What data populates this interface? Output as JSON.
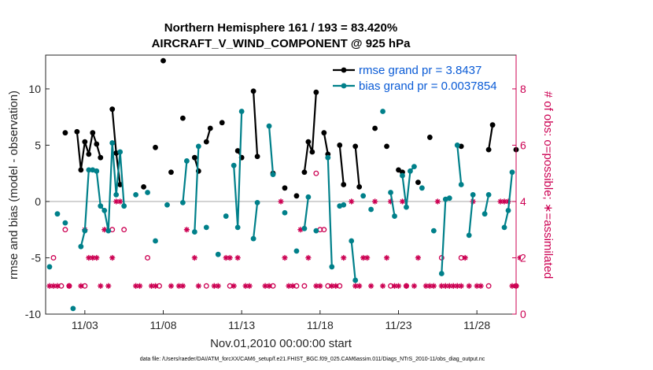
{
  "chart_data": {
    "type": "line",
    "title": "Northern Hemisphere 161 / 193 = 83.420%",
    "subtitle": "AIRCRAFT_V_WIND_COMPONENT @ 925 hPa",
    "xlabel": "Nov.01,2010 00:00:00 start",
    "ylabel": "rmse and bias (model - observation)",
    "ylabel_right": "# of obs: o=possible; ∗=assimilated",
    "footnote": "data file: /Users/raeder/DAI/ATM_forcXX/CAM6_setup/f.e21.FHIST_BGC.f09_025.CAM6assim.011/Diags_NTrS_2010-11/obs_diag_output.nc",
    "xlim": [
      0.5,
      30.5
    ],
    "ylim": [
      -10,
      13
    ],
    "ylim_right": [
      0,
      9.2
    ],
    "x_ticks": [
      {
        "value": 3,
        "label": "11/03"
      },
      {
        "value": 8,
        "label": "11/08"
      },
      {
        "value": 13,
        "label": "11/13"
      },
      {
        "value": 18,
        "label": "11/18"
      },
      {
        "value": 23,
        "label": "11/23"
      },
      {
        "value": 28,
        "label": "11/28"
      }
    ],
    "y_ticks": [
      {
        "value": -10,
        "label": "-10"
      },
      {
        "value": -5,
        "label": "-5"
      },
      {
        "value": 0,
        "label": "0"
      },
      {
        "value": 5,
        "label": "5"
      },
      {
        "value": 10,
        "label": "10"
      }
    ],
    "y_ticks_right": [
      {
        "value": 0,
        "label": "0"
      },
      {
        "value": 2,
        "label": "2"
      },
      {
        "value": 4,
        "label": "4"
      },
      {
        "value": 6,
        "label": "6"
      },
      {
        "value": 8,
        "label": "8"
      }
    ],
    "series": [
      {
        "name": "rmse grand pr = 3.8437",
        "color": "#000000",
        "points": [
          [
            1.75,
            6.1
          ],
          [
            2.5,
            6.2
          ],
          [
            2.75,
            2.8
          ],
          [
            3.0,
            5.3
          ],
          [
            3.25,
            4.2
          ],
          [
            3.5,
            6.1
          ],
          [
            3.75,
            5.1
          ],
          [
            4.0,
            3.9
          ],
          [
            4.75,
            8.2
          ],
          [
            5.0,
            4.3
          ],
          [
            5.25,
            1.5
          ],
          [
            6.75,
            1.3
          ],
          [
            7.5,
            4.8
          ],
          [
            8.0,
            12.5
          ],
          [
            8.5,
            2.6
          ],
          [
            9.25,
            7.4
          ],
          [
            10.0,
            3.9
          ],
          [
            10.25,
            2.7
          ],
          [
            10.75,
            5.3
          ],
          [
            11.0,
            6.5
          ],
          [
            11.75,
            7.0
          ],
          [
            12.75,
            4.5
          ],
          [
            13.0,
            3.9
          ],
          [
            13.75,
            9.8
          ],
          [
            14.0,
            4.0
          ],
          [
            15.0,
            2.5
          ],
          [
            15.75,
            1.2
          ],
          [
            16.5,
            0.5
          ],
          [
            17.0,
            2.6
          ],
          [
            17.25,
            5.3
          ],
          [
            17.5,
            4.4
          ],
          [
            17.75,
            9.7
          ],
          [
            18.25,
            6.1
          ],
          [
            18.5,
            4.2
          ],
          [
            19.25,
            5.0
          ],
          [
            19.5,
            1.5
          ],
          [
            20.25,
            4.9
          ],
          [
            20.5,
            1.3
          ],
          [
            21.5,
            6.5
          ],
          [
            22.25,
            4.9
          ],
          [
            23.0,
            2.8
          ],
          [
            23.25,
            2.6
          ],
          [
            24.25,
            1.7
          ],
          [
            25.0,
            5.7
          ],
          [
            27.0,
            4.9
          ],
          [
            28.75,
            4.6
          ],
          [
            29.0,
            6.8
          ],
          [
            30.5,
            4.6
          ]
        ]
      },
      {
        "name": "bias grand pr = 0.0037854",
        "color": "#00808a",
        "points": [
          [
            0.75,
            -5.8
          ],
          [
            1.25,
            -1.1
          ],
          [
            1.75,
            -1.9
          ],
          [
            2.25,
            -9.5
          ],
          [
            2.75,
            -4.0
          ],
          [
            3.0,
            -2.6
          ],
          [
            3.25,
            2.8
          ],
          [
            3.5,
            2.8
          ],
          [
            3.75,
            2.7
          ],
          [
            4.0,
            -0.4
          ],
          [
            4.25,
            -0.8
          ],
          [
            4.5,
            -2.6
          ],
          [
            4.75,
            5.2
          ],
          [
            5.0,
            0.6
          ],
          [
            5.25,
            4.4
          ],
          [
            5.5,
            -0.4
          ],
          [
            6.25,
            0.6
          ],
          [
            7.0,
            0.8
          ],
          [
            7.5,
            -3.5
          ],
          [
            8.25,
            -0.3
          ],
          [
            9.25,
            -0.1
          ],
          [
            9.5,
            3.6
          ],
          [
            10.0,
            -2.7
          ],
          [
            10.25,
            4.9
          ],
          [
            10.75,
            -2.3
          ],
          [
            11.5,
            -4.7
          ],
          [
            12.0,
            -1.3
          ],
          [
            12.5,
            3.2
          ],
          [
            12.75,
            -2.3
          ],
          [
            13.0,
            8.0
          ],
          [
            13.75,
            -3.3
          ],
          [
            14.0,
            -0.1
          ],
          [
            14.75,
            6.7
          ],
          [
            15.0,
            2.4
          ],
          [
            15.75,
            -1.0
          ],
          [
            16.5,
            -4.4
          ],
          [
            17.0,
            -2.4
          ],
          [
            17.25,
            0.4
          ],
          [
            17.75,
            -2.6
          ],
          [
            18.5,
            3.9
          ],
          [
            18.75,
            -5.8
          ],
          [
            19.25,
            -0.4
          ],
          [
            19.5,
            -0.3
          ],
          [
            20.0,
            -3.5
          ],
          [
            20.25,
            -7.0
          ],
          [
            20.75,
            0.5
          ],
          [
            21.25,
            -0.7
          ],
          [
            22.0,
            8.0
          ],
          [
            22.5,
            0.8
          ],
          [
            22.75,
            -1.3
          ],
          [
            23.25,
            2.3
          ],
          [
            23.5,
            -0.5
          ],
          [
            23.75,
            2.7
          ],
          [
            24.0,
            3.1
          ],
          [
            24.5,
            1.2
          ],
          [
            25.25,
            -2.6
          ],
          [
            25.75,
            -6.4
          ],
          [
            26.0,
            0.2
          ],
          [
            26.25,
            0.3
          ],
          [
            26.75,
            5.0
          ],
          [
            27.0,
            1.5
          ],
          [
            27.5,
            -3.0
          ],
          [
            27.75,
            0.6
          ],
          [
            28.5,
            -1.1
          ],
          [
            28.75,
            0.6
          ],
          [
            29.75,
            -2.3
          ],
          [
            30.0,
            -0.8
          ],
          [
            30.25,
            2.6
          ],
          [
            31.0,
            1.2
          ],
          [
            31.25,
            2.3
          ]
        ]
      }
    ],
    "obs_possible": {
      "name": "obs possible",
      "color": "#cc0052",
      "points": [
        [
          1.0,
          2.0
        ],
        [
          1.5,
          1.0
        ],
        [
          1.75,
          3.0
        ],
        [
          2.0,
          1.0
        ],
        [
          3.0,
          1.0
        ],
        [
          4.75,
          3.0
        ],
        [
          5.5,
          3.0
        ],
        [
          7.0,
          2.0
        ],
        [
          7.75,
          1.0
        ],
        [
          10.75,
          1.0
        ],
        [
          12.25,
          1.0
        ],
        [
          15.0,
          1.0
        ],
        [
          16.5,
          1.0
        ],
        [
          17.0,
          1.0
        ],
        [
          17.75,
          5.0
        ],
        [
          18.0,
          3.0
        ],
        [
          18.25,
          3.0
        ],
        [
          18.5,
          1.0
        ],
        [
          19.25,
          1.0
        ],
        [
          22.5,
          1.0
        ],
        [
          23.5,
          1.0
        ],
        [
          25.75,
          2.0
        ],
        [
          27.0,
          2.0
        ],
        [
          28.75,
          1.0
        ],
        [
          30.5,
          1.0
        ]
      ]
    },
    "obs_assimilated": {
      "name": "obs assimilated",
      "color": "#cc0052",
      "points": [
        [
          0.75,
          1.0
        ],
        [
          1.0,
          1.0
        ],
        [
          1.25,
          1.0
        ],
        [
          2.0,
          1.0
        ],
        [
          2.75,
          1.0
        ],
        [
          3.0,
          3.0
        ],
        [
          3.25,
          2.0
        ],
        [
          3.5,
          2.0
        ],
        [
          3.75,
          2.0
        ],
        [
          4.0,
          1.0
        ],
        [
          4.25,
          3.0
        ],
        [
          4.5,
          1.0
        ],
        [
          4.75,
          2.0
        ],
        [
          5.0,
          4.0
        ],
        [
          5.25,
          4.0
        ],
        [
          6.25,
          1.0
        ],
        [
          6.5,
          1.0
        ],
        [
          7.25,
          1.0
        ],
        [
          7.5,
          1.0
        ],
        [
          8.5,
          1.0
        ],
        [
          9.0,
          1.0
        ],
        [
          9.25,
          1.0
        ],
        [
          9.5,
          3.0
        ],
        [
          10.0,
          2.0
        ],
        [
          10.25,
          1.0
        ],
        [
          11.25,
          1.0
        ],
        [
          11.5,
          1.0
        ],
        [
          12.0,
          2.0
        ],
        [
          12.25,
          2.0
        ],
        [
          12.5,
          1.0
        ],
        [
          12.75,
          2.0
        ],
        [
          13.25,
          1.0
        ],
        [
          13.5,
          1.0
        ],
        [
          14.5,
          1.0
        ],
        [
          14.75,
          1.0
        ],
        [
          15.5,
          4.0
        ],
        [
          15.75,
          2.0
        ],
        [
          16.0,
          1.0
        ],
        [
          16.25,
          1.0
        ],
        [
          16.75,
          3.0
        ],
        [
          17.25,
          2.0
        ],
        [
          17.75,
          1.0
        ],
        [
          18.0,
          1.0
        ],
        [
          18.75,
          1.0
        ],
        [
          19.0,
          1.0
        ],
        [
          19.5,
          2.0
        ],
        [
          20.0,
          4.0
        ],
        [
          20.25,
          1.0
        ],
        [
          20.5,
          1.0
        ],
        [
          20.75,
          2.0
        ],
        [
          21.0,
          2.0
        ],
        [
          21.25,
          1.0
        ],
        [
          21.5,
          4.0
        ],
        [
          22.0,
          1.0
        ],
        [
          22.25,
          2.0
        ],
        [
          22.5,
          4.0
        ],
        [
          22.75,
          1.0
        ],
        [
          23.0,
          1.0
        ],
        [
          23.25,
          4.0
        ],
        [
          23.5,
          1.0
        ],
        [
          24.0,
          1.0
        ],
        [
          24.25,
          2.0
        ],
        [
          24.75,
          1.0
        ],
        [
          25.0,
          1.0
        ],
        [
          25.25,
          1.0
        ],
        [
          25.5,
          4.0
        ],
        [
          25.75,
          1.0
        ],
        [
          26.0,
          1.0
        ],
        [
          26.25,
          1.0
        ],
        [
          26.5,
          1.0
        ],
        [
          26.75,
          1.0
        ],
        [
          27.0,
          1.0
        ],
        [
          27.25,
          2.0
        ],
        [
          27.5,
          1.0
        ],
        [
          27.75,
          4.0
        ],
        [
          28.0,
          1.0
        ],
        [
          28.25,
          1.0
        ],
        [
          29.5,
          4.0
        ],
        [
          29.75,
          4.0
        ],
        [
          30.0,
          4.0
        ],
        [
          30.25,
          1.0
        ],
        [
          30.5,
          1.0
        ],
        [
          30.75,
          2.0
        ],
        [
          31.0,
          6.0
        ]
      ]
    }
  }
}
